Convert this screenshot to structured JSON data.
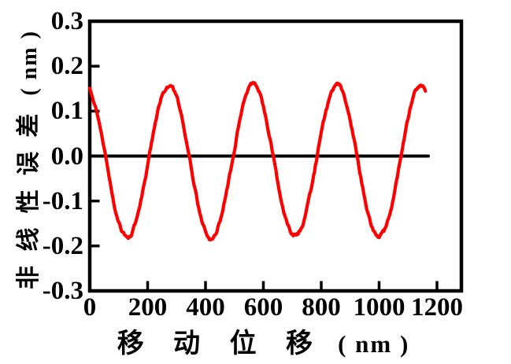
{
  "chart_data": {
    "type": "line",
    "title": "",
    "background": "#ffffff",
    "axis_color": "#000000",
    "grid": false,
    "legend": null,
    "xlabel": {
      "text": "移 动 位 移",
      "unit": "( nm )"
    },
    "ylabel": {
      "text": "非 线 性 误 差",
      "unit": "( nm )"
    },
    "xlim": [
      0,
      1284
    ],
    "ylim": [
      -0.3,
      0.3
    ],
    "x_ticks": [
      0,
      200,
      400,
      600,
      800,
      1000,
      1200
    ],
    "y_ticks": [
      "0.3",
      "0.2",
      "0.1",
      "0.0",
      "-0.1",
      "-0.2",
      "-0.3"
    ],
    "series": [
      {
        "name": "zero-reference-line",
        "color": "#000000",
        "line_width": 4,
        "smooth": false,
        "x": [
          0,
          1170
        ],
        "y": [
          0,
          0
        ]
      },
      {
        "name": "nonlinearity-error-curve",
        "color": "#ff0000",
        "line_width": 4.2,
        "smooth": true,
        "noise_amp": 0.0042,
        "seed": 11,
        "x": [
          0,
          20,
          40,
          60,
          80,
          100,
          120,
          140,
          160,
          180,
          200,
          220,
          240,
          260,
          280,
          300,
          320,
          340,
          360,
          380,
          400,
          420,
          440,
          460,
          480,
          500,
          520,
          540,
          560,
          580,
          600,
          620,
          640,
          660,
          680,
          700,
          720,
          740,
          760,
          780,
          800,
          820,
          840,
          860,
          880,
          900,
          920,
          940,
          960,
          980,
          1000,
          1020,
          1040,
          1060,
          1080,
          1100,
          1120,
          1140,
          1160
        ],
        "y": [
          0.151,
          0.108,
          0.052,
          -0.022,
          -0.094,
          -0.148,
          -0.175,
          -0.178,
          -0.144,
          -0.09,
          -0.02,
          0.052,
          0.112,
          0.148,
          0.156,
          0.131,
          0.08,
          0.014,
          -0.06,
          -0.124,
          -0.168,
          -0.188,
          -0.164,
          -0.119,
          -0.056,
          0.016,
          0.084,
          0.134,
          0.163,
          0.15,
          0.109,
          0.048,
          -0.023,
          -0.092,
          -0.147,
          -0.172,
          -0.171,
          -0.143,
          -0.089,
          -0.022,
          0.05,
          0.111,
          0.149,
          0.158,
          0.13,
          0.081,
          0.013,
          -0.058,
          -0.122,
          -0.166,
          -0.178,
          -0.163,
          -0.12,
          -0.055,
          0.015,
          0.083,
          0.133,
          0.157,
          0.146
        ]
      }
    ]
  }
}
